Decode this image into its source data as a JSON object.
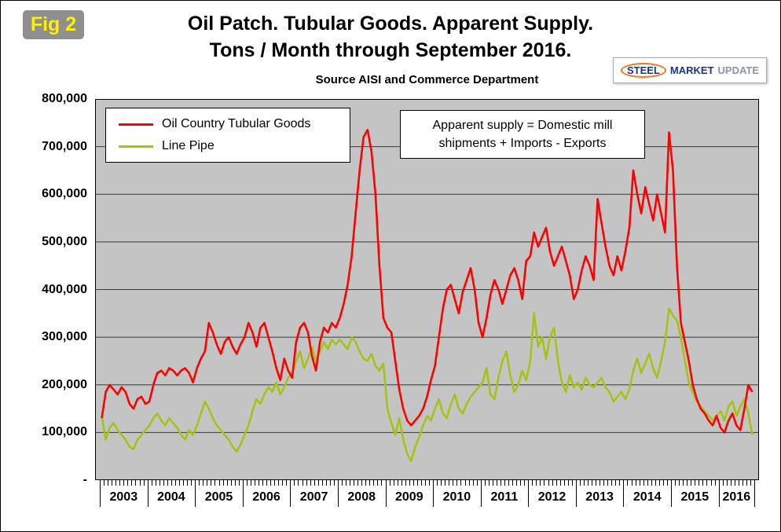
{
  "header": {
    "fig_label": "Fig 2",
    "logo": {
      "word1": "STEEL",
      "word2": "MARKET",
      "word3": "UPDATE"
    }
  },
  "annotation": {
    "line1": "Apparent supply = Domestic mill",
    "line2": "shipments + Imports - Exports"
  },
  "chart_data": {
    "type": "line",
    "title_line1": "Oil Patch. Tubular Goods. Apparent Supply.",
    "title_line2": "Tons / Month through September 2016.",
    "subtitle": "Source AISI and Commerce Department",
    "xlabel": "",
    "ylabel": "",
    "ylim": [
      0,
      800000
    ],
    "y_tick_interval": 100000,
    "y_tick_labels": [
      "800,000",
      "700,000",
      "600,000",
      "500,000",
      "400,000",
      "300,000",
      "200,000",
      "100,000",
      "-"
    ],
    "x_unit": "month",
    "x_range": "Jan 2003 - Sep 2016",
    "years": [
      "2003",
      "2004",
      "2005",
      "2006",
      "2007",
      "2008",
      "2009",
      "2010",
      "2011",
      "2012",
      "2013",
      "2014",
      "2015",
      "2016"
    ],
    "months_per_year": [
      12,
      12,
      12,
      12,
      12,
      12,
      12,
      12,
      12,
      12,
      12,
      12,
      12,
      9
    ],
    "grid": true,
    "plot_bg": "#c4c4c4",
    "grid_color": "#3a3a3a",
    "legend_position": "top-left-inside",
    "series": [
      {
        "name": "Oil Country Tubular Goods",
        "color": "#ff0000",
        "values": [
          130000,
          185000,
          200000,
          190000,
          180000,
          195000,
          185000,
          160000,
          150000,
          170000,
          175000,
          160000,
          165000,
          200000,
          225000,
          230000,
          220000,
          235000,
          230000,
          220000,
          230000,
          235000,
          225000,
          205000,
          235000,
          255000,
          270000,
          330000,
          310000,
          285000,
          265000,
          290000,
          300000,
          280000,
          265000,
          285000,
          300000,
          330000,
          310000,
          280000,
          320000,
          330000,
          300000,
          270000,
          235000,
          210000,
          255000,
          230000,
          215000,
          290000,
          320000,
          330000,
          310000,
          260000,
          230000,
          290000,
          320000,
          310000,
          330000,
          320000,
          340000,
          370000,
          410000,
          470000,
          560000,
          650000,
          720000,
          735000,
          690000,
          600000,
          450000,
          340000,
          320000,
          310000,
          250000,
          190000,
          150000,
          125000,
          115000,
          125000,
          135000,
          150000,
          175000,
          210000,
          240000,
          300000,
          360000,
          400000,
          410000,
          380000,
          350000,
          395000,
          420000,
          445000,
          400000,
          330000,
          300000,
          340000,
          390000,
          420000,
          400000,
          370000,
          400000,
          430000,
          445000,
          420000,
          380000,
          460000,
          470000,
          520000,
          490000,
          510000,
          530000,
          480000,
          450000,
          470000,
          490000,
          460000,
          430000,
          380000,
          400000,
          440000,
          470000,
          450000,
          420000,
          590000,
          540000,
          490000,
          450000,
          430000,
          470000,
          440000,
          480000,
          530000,
          650000,
          600000,
          560000,
          615000,
          580000,
          545000,
          600000,
          560000,
          520000,
          730000,
          650000,
          450000,
          330000,
          290000,
          250000,
          200000,
          170000,
          150000,
          140000,
          125000,
          115000,
          135000,
          110000,
          100000,
          125000,
          140000,
          115000,
          105000,
          150000,
          200000,
          185000
        ]
      },
      {
        "name": "Line Pipe",
        "color": "#a3c414",
        "values": [
          135000,
          85000,
          110000,
          120000,
          105000,
          95000,
          85000,
          70000,
          65000,
          85000,
          95000,
          105000,
          115000,
          130000,
          140000,
          125000,
          115000,
          130000,
          120000,
          110000,
          95000,
          85000,
          105000,
          95000,
          115000,
          140000,
          165000,
          150000,
          130000,
          115000,
          105000,
          95000,
          85000,
          70000,
          60000,
          75000,
          95000,
          115000,
          145000,
          170000,
          160000,
          180000,
          195000,
          185000,
          205000,
          180000,
          195000,
          215000,
          225000,
          250000,
          270000,
          235000,
          255000,
          280000,
          250000,
          270000,
          290000,
          275000,
          295000,
          285000,
          295000,
          285000,
          275000,
          300000,
          290000,
          270000,
          255000,
          250000,
          265000,
          240000,
          230000,
          245000,
          150000,
          120000,
          95000,
          130000,
          85000,
          55000,
          40000,
          70000,
          90000,
          115000,
          135000,
          125000,
          150000,
          170000,
          140000,
          130000,
          160000,
          180000,
          150000,
          140000,
          160000,
          175000,
          185000,
          195000,
          205000,
          235000,
          180000,
          170000,
          215000,
          250000,
          270000,
          220000,
          185000,
          200000,
          230000,
          210000,
          250000,
          350000,
          280000,
          300000,
          255000,
          300000,
          320000,
          250000,
          205000,
          185000,
          220000,
          195000,
          205000,
          190000,
          215000,
          200000,
          195000,
          205000,
          215000,
          195000,
          185000,
          165000,
          175000,
          185000,
          170000,
          190000,
          230000,
          255000,
          225000,
          245000,
          265000,
          235000,
          215000,
          250000,
          290000,
          360000,
          345000,
          335000,
          300000,
          250000,
          205000,
          185000,
          165000,
          155000,
          145000,
          135000,
          125000,
          135000,
          145000,
          125000,
          155000,
          165000,
          135000,
          155000,
          170000,
          140000,
          95000
        ]
      }
    ]
  }
}
